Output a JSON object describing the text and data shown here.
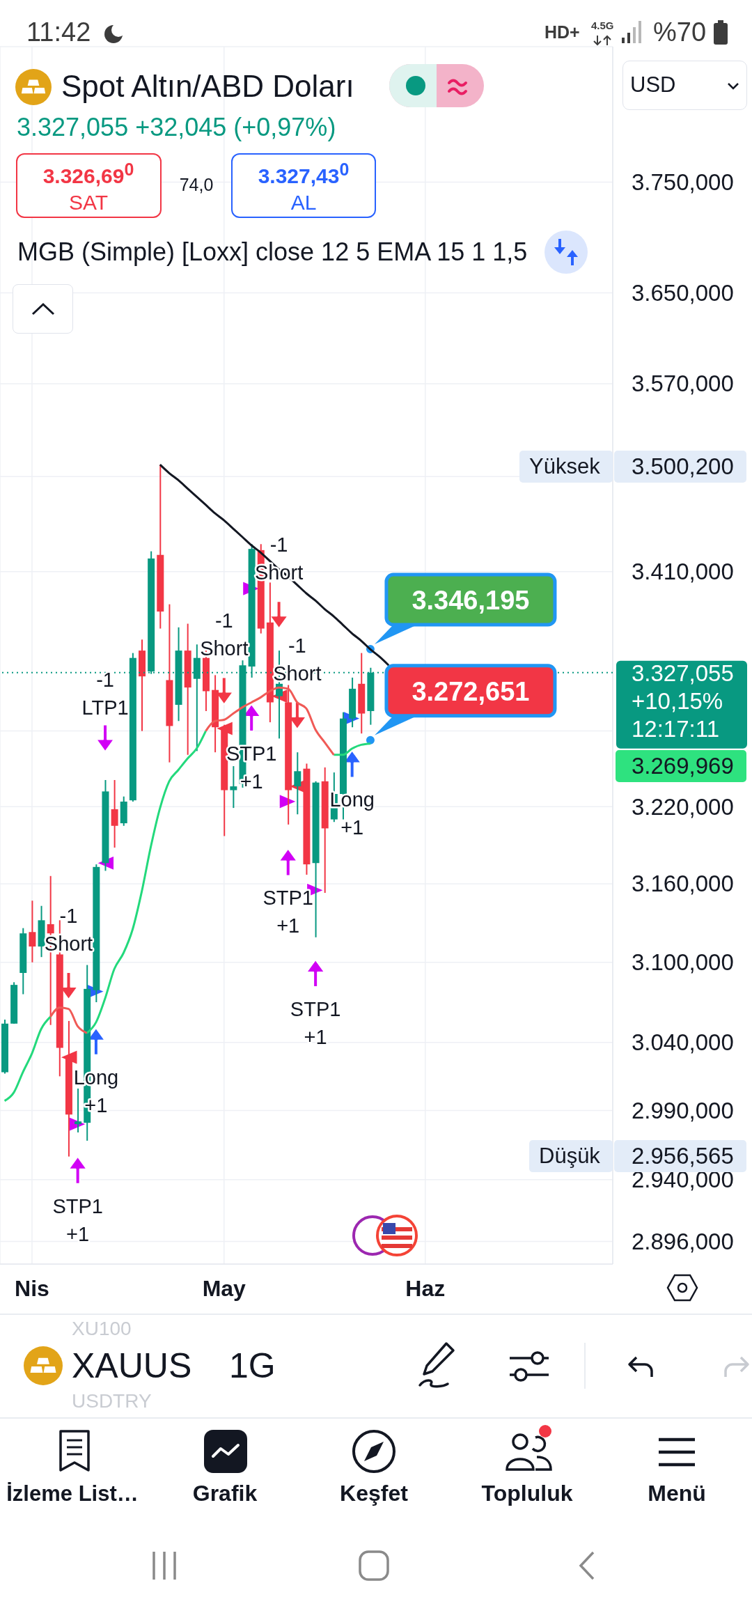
{
  "chart_data": {
    "type": "candlestick",
    "title": "Spot Altın/ABD Doları",
    "subtitle": "3.327,055 +32,045 (+0,97%)",
    "categories": [
      null,
      null,
      null,
      "Nis",
      null,
      null,
      null,
      null,
      null,
      null,
      null,
      null,
      null,
      null,
      null,
      null,
      null,
      null,
      null,
      null,
      null,
      null,
      null,
      null,
      "May",
      null,
      null,
      null,
      null,
      null,
      null,
      null,
      null,
      null,
      null,
      null,
      null,
      null,
      null,
      null,
      null,
      null,
      null,
      null,
      null,
      null,
      "Haz",
      null,
      null,
      null,
      null,
      null,
      null,
      null,
      null,
      null,
      null,
      null,
      null,
      null,
      null,
      null,
      null,
      null,
      null,
      null,
      null
    ],
    "ohlc": [
      [
        3018,
        3057,
        3017,
        3054
      ],
      [
        3054,
        3085,
        3054,
        3083
      ],
      [
        3092,
        3126,
        3076,
        3122
      ],
      [
        3123,
        3147,
        3100,
        3112
      ],
      [
        3112,
        3143,
        3104,
        3132
      ],
      [
        3129,
        3166,
        3053,
        3122
      ],
      [
        3106,
        3132,
        3015,
        3036
      ],
      [
        3028,
        3056,
        2956.565,
        2987
      ],
      [
        2980,
        3006,
        2974,
        2982
      ],
      [
        2981,
        3098,
        2968,
        3080
      ],
      [
        3079,
        3175,
        3070,
        3173
      ],
      [
        3176,
        3241,
        3170,
        3232
      ],
      [
        3218,
        3241,
        3188,
        3205
      ],
      [
        3207,
        3228,
        3205,
        3224
      ],
      [
        3225,
        3343,
        3224,
        3339
      ],
      [
        3345,
        3354,
        3280,
        3324
      ],
      [
        3328,
        3427,
        3326,
        3421
      ],
      [
        3424,
        3500.2,
        3363,
        3377
      ],
      [
        3321,
        3383,
        3255,
        3284
      ],
      [
        3301,
        3364,
        3288,
        3345
      ],
      [
        3345,
        3367,
        3261,
        3315
      ],
      [
        3322,
        3350,
        3264,
        3339
      ],
      [
        3339,
        3345,
        3296,
        3312
      ],
      [
        3313,
        3325,
        3263,
        3283
      ],
      [
        3283,
        3285,
        3197,
        3233
      ],
      [
        3233,
        3252,
        3219,
        3236
      ],
      [
        3238,
        3337,
        3235,
        3333
      ],
      [
        3332,
        3433,
        3323,
        3429
      ],
      [
        3428,
        3433,
        3359,
        3363
      ],
      [
        3368,
        3401,
        3287,
        3303
      ],
      [
        3308,
        3345,
        3274,
        3318
      ],
      [
        3303,
        3317,
        3206,
        3233
      ],
      [
        3236,
        3263,
        3214,
        3248
      ],
      [
        3250,
        3254,
        3167,
        3175
      ],
      [
        3176,
        3240,
        3119,
        3239
      ],
      [
        3240,
        3251,
        3153,
        3203
      ],
      [
        3210,
        3247,
        3208,
        3230
      ],
      [
        3230,
        3295,
        3210,
        3290
      ],
      [
        3290,
        3323,
        3283,
        3314
      ],
      [
        3318,
        3343,
        3278,
        3294
      ],
      [
        3296,
        3331,
        3285,
        3327.055
      ],
      null,
      null,
      null,
      null,
      null,
      null,
      null,
      null,
      null,
      null,
      null,
      null,
      null,
      null,
      null,
      null,
      null,
      null,
      null,
      null,
      null,
      null,
      null,
      null,
      null,
      null
    ],
    "colors": [
      "#089981",
      "#089981",
      "#089981",
      "#f23645",
      "#089981",
      "#f23645",
      "#f23645",
      "#f23645",
      "#089981",
      "#089981",
      "#089981",
      "#089981",
      "#f23645",
      "#089981",
      "#089981",
      "#f23645",
      "#089981",
      "#f23645",
      "#f23645",
      "#089981",
      "#f23645",
      "#089981",
      "#f23645",
      "#f23645",
      "#f23645",
      "#089981",
      "#089981",
      "#089981",
      "#f23645",
      "#f23645",
      "#089981",
      "#f23645",
      "#089981",
      "#f23645",
      "#089981",
      "#f23645",
      "#089981",
      "#089981",
      "#089981",
      "#f23645",
      "#089981",
      null,
      null,
      null,
      null,
      null,
      null,
      null,
      null,
      null,
      null,
      null,
      null,
      null,
      null,
      null,
      null,
      null,
      null,
      null,
      null,
      null,
      null,
      null,
      null,
      null,
      null
    ],
    "series": [
      {
        "type": "line",
        "color": "#23d97c",
        "values": [
          2997,
          3003,
          3018,
          3032,
          3050,
          3059,
          null,
          null,
          null,
          3047,
          3055,
          3073,
          3095,
          3107,
          3125,
          3154,
          3189,
          3219,
          3240,
          3249,
          3258,
          3266,
          3280,
          null,
          null,
          null,
          null,
          null,
          null,
          null,
          null,
          null,
          null,
          null,
          null,
          null,
          3261,
          3261,
          3266,
          3269,
          3269.969,
          null,
          null,
          null,
          null,
          null,
          null,
          null,
          null,
          null,
          null,
          null,
          null,
          null,
          null,
          null,
          null,
          null,
          null,
          null,
          null,
          null,
          null,
          null,
          null,
          null,
          null
        ]
      },
      {
        "type": "line",
        "color": "#f05a56",
        "values": [
          null,
          null,
          null,
          null,
          null,
          3059,
          3066,
          3065,
          3052,
          3047,
          null,
          null,
          null,
          null,
          null,
          null,
          null,
          null,
          null,
          null,
          null,
          null,
          3280,
          3288,
          3289,
          3294,
          3299,
          3303,
          3307,
          3312,
          3315,
          3314,
          3303,
          3298,
          3281,
          3271,
          3261,
          null,
          null,
          null,
          null,
          null,
          null,
          null,
          null,
          null,
          null,
          null,
          null,
          null,
          null,
          null,
          null,
          null,
          null,
          null,
          null,
          null,
          null,
          null,
          null,
          null,
          null,
          null,
          null,
          null,
          null
        ]
      },
      {
        "type": "line",
        "color": "#131722",
        "values": [
          null,
          null,
          null,
          null,
          null,
          null,
          null,
          null,
          null,
          null,
          null,
          null,
          null,
          null,
          null,
          null,
          null,
          3500.2,
          3493,
          3487,
          3480,
          3473,
          3466,
          3459,
          3453,
          3446,
          3439,
          3432,
          3426,
          3419,
          3412,
          3406,
          3399,
          3392,
          3386,
          3379,
          3373,
          3366,
          3359,
          3353,
          3346,
          3340,
          3333,
          null,
          null,
          null,
          null,
          null,
          null,
          null,
          null,
          null,
          null,
          null,
          null,
          null,
          null,
          null,
          null,
          null,
          null,
          null,
          null,
          null,
          null,
          null,
          null
        ]
      },
      {
        "type": "scatter",
        "name": "-1\nShort",
        "color": "#f23645",
        "marker": "triangle",
        "values": [
          null,
          null,
          null,
          null,
          null,
          null,
          null,
          3082,
          null,
          null,
          null,
          null,
          null,
          null,
          null,
          null,
          null,
          null,
          null,
          null,
          null,
          null,
          null,
          null,
          3312,
          null,
          null,
          null,
          null,
          null,
          3374,
          null,
          3292,
          null,
          null,
          null,
          null,
          null,
          null,
          null,
          null,
          null,
          null,
          null,
          null,
          null,
          null,
          null,
          null,
          null,
          null,
          null,
          null,
          null,
          null,
          null,
          null,
          null,
          null,
          null,
          null,
          null,
          null,
          null,
          null,
          null,
          null
        ]
      },
      {
        "type": "scatter",
        "color": "#f23645",
        "marker": "triangle",
        "values": [
          null,
          null,
          null,
          null,
          null,
          null,
          null,
          3029,
          null,
          null,
          null,
          null,
          null,
          null,
          null,
          null,
          null,
          null,
          null,
          null,
          null,
          null,
          null,
          null,
          3282,
          null,
          null,
          null,
          null,
          null,
          3308,
          null,
          3236,
          null,
          null,
          null,
          null,
          null,
          null,
          null,
          null,
          null,
          null,
          null,
          null,
          null,
          null,
          null,
          null,
          null,
          null,
          null,
          null,
          null,
          null,
          null,
          null,
          null,
          null,
          null,
          null,
          null,
          null,
          null,
          null,
          null,
          null
        ]
      },
      {
        "type": "scatter",
        "name": "Long\n+1",
        "color": "#2962ff",
        "marker": "triangle",
        "values": [
          null,
          null,
          null,
          null,
          null,
          null,
          null,
          null,
          null,
          null,
          3041,
          null,
          null,
          null,
          null,
          null,
          null,
          null,
          null,
          null,
          null,
          null,
          null,
          null,
          null,
          null,
          null,
          null,
          null,
          null,
          null,
          null,
          null,
          null,
          null,
          null,
          null,
          null,
          3254,
          null,
          null,
          null,
          null,
          null,
          null,
          null,
          null,
          null,
          null,
          null,
          null,
          null,
          null,
          null,
          null,
          null,
          null,
          null,
          null,
          null,
          null,
          null,
          null,
          null,
          null,
          null,
          null
        ]
      },
      {
        "type": "scatter",
        "color": "#2962ff",
        "marker": "triangle",
        "values": [
          null,
          null,
          null,
          null,
          null,
          null,
          null,
          null,
          null,
          null,
          3078,
          null,
          null,
          null,
          null,
          null,
          null,
          null,
          null,
          null,
          null,
          null,
          null,
          null,
          null,
          null,
          null,
          null,
          null,
          null,
          null,
          null,
          null,
          null,
          null,
          null,
          null,
          null,
          3290,
          null,
          null,
          null,
          null,
          null,
          null,
          null,
          null,
          null,
          null,
          null,
          null,
          null,
          null,
          null,
          null,
          null,
          null,
          null,
          null,
          null,
          null,
          null,
          null,
          null,
          null,
          null,
          null
        ]
      },
      {
        "type": "scatter",
        "name": "STP1\n+1",
        "color": "#d100f5",
        "marker": "triangle",
        "values": [
          null,
          null,
          null,
          null,
          null,
          null,
          null,
          null,
          2947,
          null,
          null,
          null,
          null,
          null,
          null,
          null,
          null,
          null,
          null,
          null,
          null,
          null,
          null,
          null,
          null,
          null,
          null,
          3291,
          null,
          null,
          null,
          3177,
          null,
          null,
          3092,
          null,
          null,
          null,
          null,
          null,
          null,
          null,
          null,
          null,
          null,
          null,
          null,
          null,
          null,
          null,
          null,
          null,
          null,
          null,
          null,
          null,
          null,
          null,
          null,
          null,
          null,
          null,
          null,
          null,
          null,
          null,
          null
        ]
      },
      {
        "type": "scatter",
        "name": "-1\nLTP1",
        "color": "#d100f5",
        "marker": "triangle",
        "values": [
          null,
          null,
          null,
          null,
          null,
          null,
          null,
          null,
          null,
          null,
          null,
          3274,
          null,
          null,
          null,
          null,
          null,
          null,
          null,
          null,
          null,
          null,
          null,
          null,
          null,
          null,
          null,
          null,
          null,
          null,
          null,
          null,
          null,
          null,
          null,
          null,
          null,
          null,
          null,
          null,
          null,
          null,
          null,
          null,
          null,
          null,
          null,
          null,
          null,
          null,
          null,
          null,
          null,
          null,
          null,
          null,
          null,
          null,
          null,
          null,
          null,
          null,
          null,
          null,
          null,
          null,
          null
        ]
      },
      {
        "type": "scatter",
        "color": "#d100f5",
        "marker": "triangle",
        "values": [
          null,
          null,
          null,
          null,
          null,
          null,
          null,
          null,
          2980,
          null,
          null,
          3176,
          null,
          null,
          null,
          null,
          null,
          null,
          null,
          null,
          null,
          null,
          null,
          null,
          null,
          null,
          null,
          3396,
          null,
          null,
          null,
          3224,
          null,
          null,
          3155,
          null,
          null,
          null,
          null,
          null,
          null,
          null,
          null,
          null,
          null,
          null,
          null,
          null,
          null,
          null,
          null,
          null,
          null,
          null,
          null,
          null,
          null,
          null,
          null,
          null,
          null,
          null,
          null,
          null,
          null,
          null,
          null
        ]
      },
      {
        "type": "scatter",
        "color": "#2196f3",
        "marker": "circle",
        "values": [
          null,
          null,
          null,
          null,
          null,
          null,
          null,
          null,
          null,
          null,
          null,
          null,
          null,
          null,
          null,
          null,
          null,
          null,
          null,
          null,
          null,
          null,
          null,
          null,
          null,
          null,
          null,
          null,
          null,
          null,
          null,
          null,
          null,
          null,
          null,
          null,
          null,
          null,
          null,
          null,
          3346.195,
          null,
          null,
          null,
          null,
          null,
          null,
          null,
          null,
          null,
          null,
          null,
          null,
          null,
          null,
          null,
          null,
          null,
          null,
          null,
          null,
          null,
          null,
          null,
          null,
          null,
          null
        ],
        "value_labels": [
          null,
          null,
          null,
          null,
          null,
          null,
          null,
          null,
          null,
          null,
          null,
          null,
          null,
          null,
          null,
          null,
          null,
          null,
          null,
          null,
          null,
          null,
          null,
          null,
          null,
          null,
          null,
          null,
          null,
          null,
          null,
          null,
          null,
          null,
          null,
          null,
          null,
          null,
          null,
          null,
          "3.346,195",
          null,
          null,
          null,
          null,
          null,
          null,
          null,
          null,
          null,
          null,
          null,
          null,
          null,
          null,
          null,
          null,
          null,
          null,
          null,
          null,
          null,
          null,
          null,
          null,
          null,
          null
        ]
      },
      {
        "type": "scatter",
        "color": "#2196f3",
        "marker": "circle",
        "values": [
          null,
          null,
          null,
          null,
          null,
          null,
          null,
          null,
          null,
          null,
          null,
          null,
          null,
          null,
          null,
          null,
          null,
          null,
          null,
          null,
          null,
          null,
          null,
          null,
          null,
          null,
          null,
          null,
          null,
          null,
          null,
          null,
          null,
          null,
          null,
          null,
          null,
          null,
          null,
          null,
          3272.651,
          null,
          null,
          null,
          null,
          null,
          null,
          null,
          null,
          null,
          null,
          null,
          null,
          null,
          null,
          null,
          null,
          null,
          null,
          null,
          null,
          null,
          null,
          null,
          null,
          null,
          null
        ],
        "value_labels": [
          null,
          null,
          null,
          null,
          null,
          null,
          null,
          null,
          null,
          null,
          null,
          null,
          null,
          null,
          null,
          null,
          null,
          null,
          null,
          null,
          null,
          null,
          null,
          null,
          null,
          null,
          null,
          null,
          null,
          null,
          null,
          null,
          null,
          null,
          null,
          null,
          null,
          null,
          null,
          null,
          "3.272,651",
          null,
          null,
          null,
          null,
          null,
          null,
          null,
          null,
          null,
          null,
          null,
          null,
          null,
          null,
          null,
          null,
          null,
          null,
          null,
          null,
          null,
          null,
          null,
          null,
          null,
          null
        ]
      }
    ],
    "ylim": [
      2880,
      3876
    ],
    "yticks": [
      {
        "value": 3750,
        "label": "3.750,000"
      },
      {
        "value": 3650,
        "label": "3.650,000"
      },
      {
        "value": 3570,
        "label": "3.570,000"
      },
      {
        "value": 3490,
        "label": null
      },
      {
        "value": 3410,
        "label": "3.410,000"
      },
      {
        "value": 3280,
        "label": null
      },
      {
        "value": 3220,
        "label": "3.220,000"
      },
      {
        "value": 3160,
        "label": "3.160,000"
      },
      {
        "value": 3100,
        "label": "3.100,000"
      },
      {
        "value": 3040,
        "label": "3.040,000"
      },
      {
        "value": 2990,
        "label": "2.990,000"
      },
      {
        "value": 2940,
        "label": "2.940,000"
      },
      {
        "value": 2896,
        "label": "2.896,000"
      }
    ],
    "log": true,
    "grid": true,
    "ref_lines": [
      {
        "axis": "y",
        "value": 3327.055,
        "label": "3.327,055\n+10,15%\n12:17:11",
        "color": "#089981",
        "line_style": "dotted"
      }
    ],
    "annotations": [
      "11:42",
      "HD+",
      "4.5G",
      "%70",
      "USD",
      "3.326,69$^{0}$",
      "SAT",
      "74,0",
      "3.327,43$^{0}$",
      "AL",
      "MGB (Simple) [Loxx] close 12 5 EMA 15 1 1,5",
      "XU100",
      "XAUUS",
      "USDTRY",
      "1G",
      "İzleme List…",
      "Grafik",
      "Keşfet",
      "Topluluk",
      "Menü",
      "Yüksek",
      "3.500,200",
      "Düşük",
      "2.956,565",
      "3.269,969"
    ]
  }
}
